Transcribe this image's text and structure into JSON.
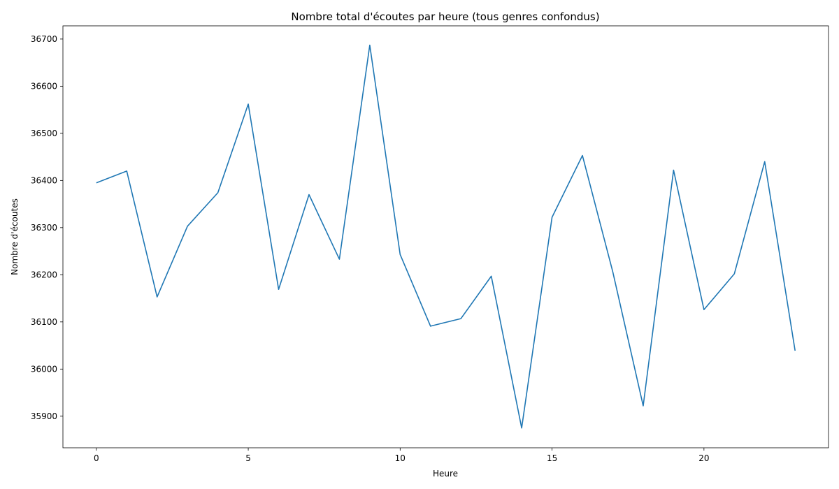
{
  "chart_data": {
    "type": "line",
    "title": "Nombre total d'écoutes par heure (tous genres confondus)",
    "xlabel": "Heure",
    "ylabel": "Nombre d'écoutes",
    "xlim": [
      -1.1,
      24.1
    ],
    "ylim": [
      35833,
      36728
    ],
    "xticks": [
      0,
      5,
      10,
      15,
      20
    ],
    "yticks": [
      35900,
      36000,
      36100,
      36200,
      36300,
      36400,
      36500,
      36600,
      36700
    ],
    "grid": false,
    "series": [
      {
        "color": "#1f77b4",
        "x": [
          0,
          1,
          2,
          3,
          4,
          5,
          6,
          7,
          8,
          9,
          10,
          11,
          12,
          13,
          14,
          15,
          16,
          17,
          18,
          19,
          20,
          21,
          22,
          23
        ],
        "y": [
          36395,
          36420,
          36153,
          36303,
          36374,
          36562,
          36169,
          36370,
          36233,
          36687,
          36243,
          36091,
          36107,
          36197,
          35875,
          36322,
          36453,
          36206,
          35922,
          36422,
          36126,
          36202,
          36440,
          36039
        ]
      }
    ]
  }
}
